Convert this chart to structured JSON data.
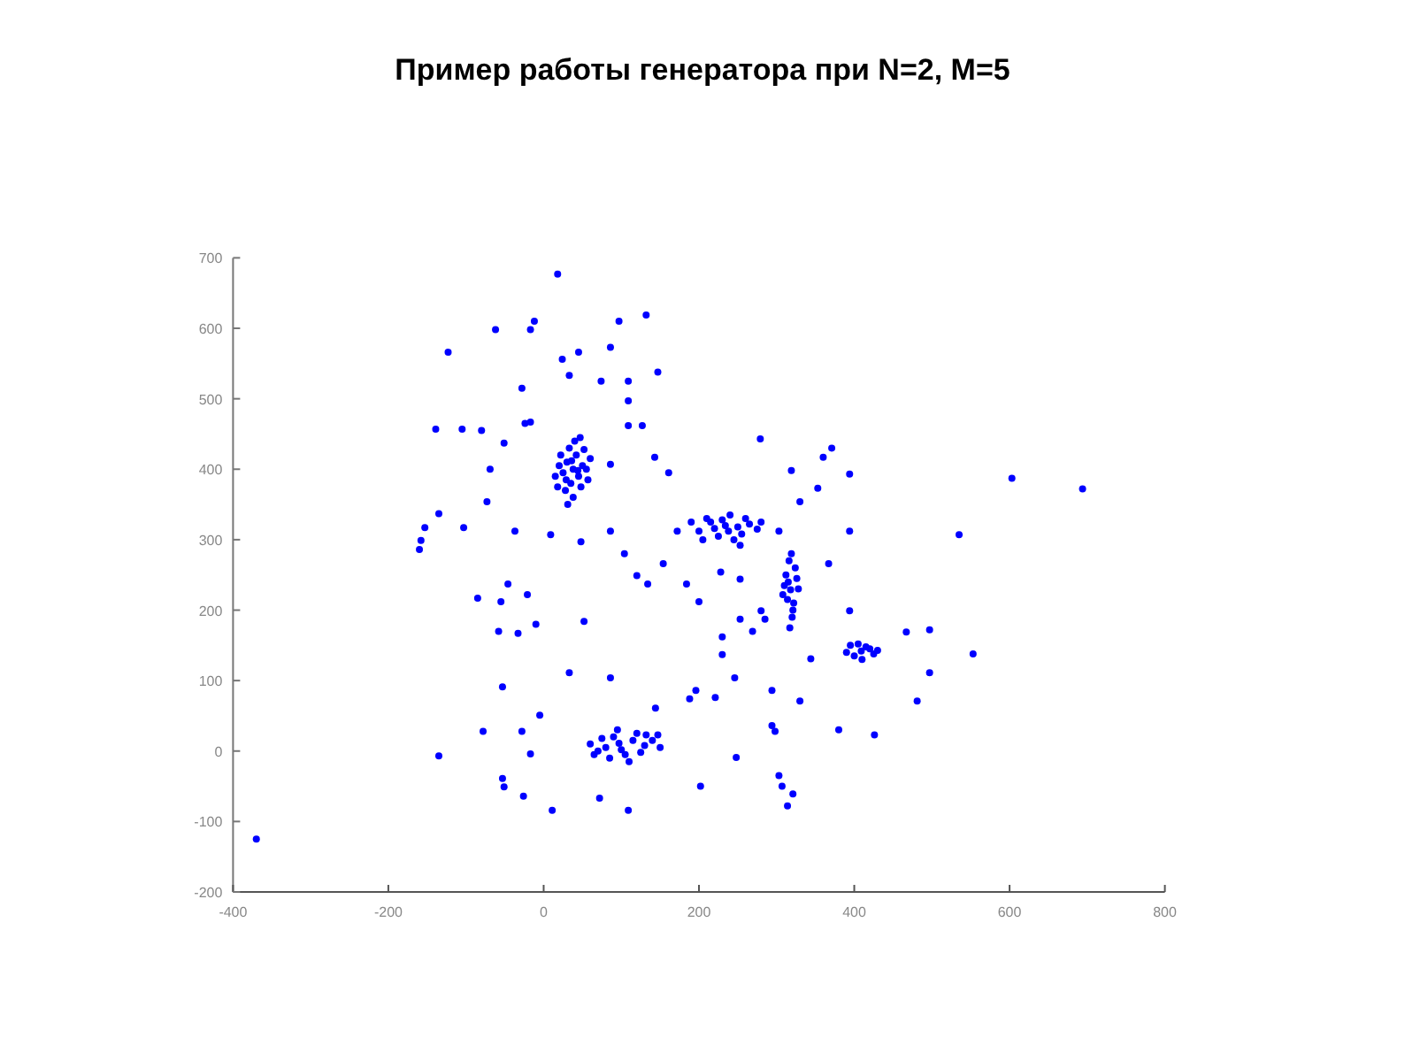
{
  "chart_data": {
    "type": "scatter",
    "title": "Пример работы генератора при N=2, M=5",
    "xlim": [
      -400,
      800
    ],
    "ylim": [
      -200,
      700
    ],
    "xticks": [
      -400,
      -200,
      0,
      200,
      400,
      600,
      800
    ],
    "yticks": [
      -200,
      -100,
      0,
      100,
      200,
      300,
      400,
      500,
      600,
      700
    ],
    "grid": false,
    "marker": "circle",
    "series": [
      {
        "color": "#0000ff",
        "x": [
          38,
          30,
          45,
          25,
          50,
          35,
          42,
          20,
          55,
          33,
          48,
          28,
          40,
          60,
          15,
          38,
          52,
          22,
          44,
          36,
          29,
          57,
          18,
          47,
          31,
          234,
          215,
          250,
          200,
          265,
          225,
          240,
          210,
          255,
          190,
          275,
          230,
          245,
          220,
          260,
          205,
          280,
          238,
          318,
          312,
          322,
          316,
          320,
          310,
          326,
          314,
          319,
          324,
          308,
          321,
          315,
          328,
          317,
          409,
          400,
          420,
          395,
          425,
          410,
          405,
          430,
          390,
          415,
          97,
          80,
          115,
          70,
          130,
          90,
          105,
          60,
          140,
          85,
          120,
          100,
          75,
          110,
          150,
          95,
          65,
          125,
          18,
          132,
          -12,
          97,
          -62,
          -17,
          -123,
          45,
          86,
          24,
          147,
          -28,
          109,
          33,
          74,
          -80,
          -105,
          -139,
          -24,
          -17,
          109,
          109,
          -51,
          127,
          -69,
          143,
          86,
          161,
          -73,
          -135,
          -153,
          -158,
          -160,
          -103,
          -37,
          9,
          48,
          86,
          104,
          154,
          172,
          279,
          371,
          360,
          319,
          353,
          394,
          603,
          694,
          535,
          394,
          -85,
          -55,
          -46,
          -21,
          -10,
          -58,
          -33,
          52,
          33,
          -53,
          -78,
          -28,
          -5,
          -17,
          -135,
          -53,
          -51,
          -26,
          11,
          72,
          109,
          -370,
          86,
          132,
          147,
          144,
          188,
          221,
          246,
          230,
          196,
          248,
          294,
          298,
          303,
          307,
          314,
          321,
          202,
          230,
          253,
          280,
          269,
          294,
          330,
          344,
          380,
          426,
          481,
          497,
          553,
          497,
          467,
          394,
          200,
          184,
          228,
          253,
          120,
          134,
          303,
          330,
          367,
          285,
          253
        ],
        "values": [
          400,
          410,
          390,
          395,
          405,
          380,
          420,
          405,
          400,
          430,
          375,
          370,
          440,
          415,
          390,
          360,
          428,
          420,
          398,
          412,
          385,
          385,
          375,
          445,
          350,
          320,
          325,
          318,
          312,
          322,
          305,
          335,
          330,
          308,
          325,
          315,
          328,
          300,
          316,
          330,
          300,
          325,
          312,
          229,
          250,
          210,
          270,
          190,
          235,
          245,
          215,
          280,
          260,
          222,
          200,
          240,
          230,
          175,
          142,
          135,
          145,
          150,
          138,
          130,
          152,
          143,
          140,
          148,
          11,
          5,
          15,
          0,
          8,
          20,
          -5,
          10,
          15,
          -10,
          25,
          2,
          18,
          -15,
          5,
          30,
          -5,
          -2,
          677,
          619,
          610,
          610,
          598,
          598,
          566,
          566,
          573,
          556,
          538,
          515,
          525,
          533,
          525,
          455,
          457,
          457,
          465,
          467,
          497,
          462,
          437,
          462,
          400,
          417,
          407,
          395,
          354,
          337,
          317,
          299,
          286,
          317,
          312,
          307,
          297,
          312,
          280,
          266,
          312,
          443,
          430,
          417,
          398,
          373,
          393,
          387,
          372,
          307,
          312,
          217,
          212,
          237,
          222,
          180,
          170,
          167,
          184,
          111,
          91,
          28,
          28,
          51,
          -4,
          -7,
          -39,
          -51,
          -64,
          -84,
          -67,
          -84,
          -125,
          104,
          23,
          23,
          61,
          74,
          76,
          104,
          137,
          86,
          -9,
          36,
          28,
          -35,
          -50,
          -78,
          -61,
          -50,
          162,
          187,
          199,
          170,
          86,
          71,
          131,
          30,
          23,
          71,
          111,
          138,
          172,
          169,
          199,
          212,
          237,
          254,
          244,
          249,
          237,
          312,
          354,
          266,
          187,
          292
        ]
      }
    ]
  }
}
